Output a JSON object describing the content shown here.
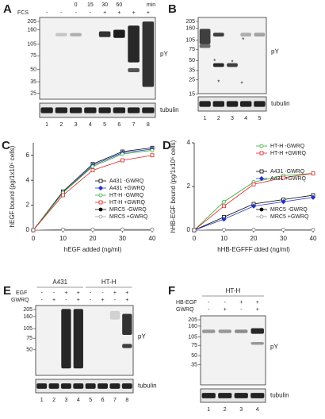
{
  "panels": {
    "A": {
      "label": "A",
      "time": [
        "0",
        "15",
        "30",
        "60"
      ],
      "time_unit": "min",
      "fcs_label": "FCS",
      "fcs": [
        "-",
        "-",
        "-",
        "-",
        "+",
        "+",
        "+",
        "+"
      ],
      "mw": [
        205,
        160,
        105,
        75,
        50,
        35,
        25
      ],
      "blot_label": "pY",
      "loading_label": "tubulin",
      "lanes": [
        1,
        2,
        3,
        4,
        5,
        6,
        7,
        8
      ]
    },
    "B": {
      "label": "B",
      "mw": [
        205,
        160,
        105,
        75,
        50,
        35,
        25,
        15
      ],
      "blot_label": "pY",
      "loading_label": "tubulin",
      "lanes": [
        1,
        2,
        3,
        4,
        5
      ],
      "marks": [
        "*",
        "*",
        "*",
        "*",
        "*"
      ]
    },
    "E": {
      "label": "E",
      "groups": [
        "A431",
        "HT-H"
      ],
      "row1_label": "EGF",
      "row1": [
        "-",
        "-",
        "+",
        "+",
        "-",
        "-",
        "+",
        "+"
      ],
      "row2_label": "GWRQ",
      "row2": [
        "-",
        "+",
        "-",
        "+",
        "-",
        "+",
        "-",
        "+"
      ],
      "mw": [
        205,
        160,
        105,
        75,
        50
      ],
      "blot_label": "pY",
      "loading_label": "tubulin",
      "lanes": [
        1,
        2,
        3,
        4,
        5,
        6,
        7,
        8
      ]
    },
    "F": {
      "label": "F",
      "groups": [
        "HT-H"
      ],
      "row1_label": "HB-EGF",
      "row1": [
        "-",
        "-",
        "+",
        "+"
      ],
      "row2_label": "GWRQ",
      "row2": [
        "-",
        "+",
        "-",
        "+"
      ],
      "mw": [
        205,
        160,
        105,
        75,
        50,
        35
      ],
      "blot_label": "pY",
      "loading_label": "tubulin",
      "lanes": [
        1,
        2,
        3,
        4
      ]
    }
  },
  "chart_data": [
    {
      "type": "line",
      "label": "C",
      "xlabel": "hEGF added (ng/ml)",
      "ylabel": "hEGF bound (pg/1x10⁵ cells)",
      "x": [
        0,
        10,
        20,
        30,
        40
      ],
      "xlim": [
        0,
        40
      ],
      "ylim": [
        0,
        7
      ],
      "xticks": [
        0,
        10,
        20,
        30,
        40
      ],
      "yticks": [
        0,
        2,
        4,
        6
      ],
      "legend": "lower right",
      "series": [
        {
          "name": "A431 -GWRQ",
          "color": "#000000",
          "marker": "square-open",
          "values": [
            0,
            3.1,
            5.3,
            6.3,
            6.6
          ]
        },
        {
          "name": "A431 +GWRQ",
          "color": "#2233cc",
          "marker": "diamond",
          "values": [
            0,
            3.0,
            5.2,
            6.2,
            6.5
          ]
        },
        {
          "name": "HT-H -GWRQ",
          "color": "#33aa33",
          "marker": "circle-open",
          "values": [
            0,
            3.0,
            5.1,
            6.1,
            6.4
          ]
        },
        {
          "name": "HT-H +GWRQ",
          "color": "#dd2222",
          "marker": "square-open",
          "values": [
            0,
            2.8,
            4.8,
            5.6,
            6.0
          ]
        },
        {
          "name": "MRC5 -GWRQ",
          "color": "#000000",
          "marker": "circle",
          "values": [
            0,
            0.05,
            0.05,
            0.05,
            0.05
          ]
        },
        {
          "name": "MRC5 +GWRQ",
          "color": "#999999",
          "marker": "circle-open",
          "values": [
            0,
            0.04,
            0.04,
            0.04,
            0.04
          ]
        }
      ]
    },
    {
      "type": "line",
      "label": "D",
      "xlabel": "hHB-EGFFF dded (ng/ml)",
      "ylabel": "hHB-EGF bound (pg/1x10⁵ cells)",
      "x": [
        0,
        10,
        20,
        30,
        40
      ],
      "xlim": [
        0,
        40
      ],
      "ylim": [
        0,
        4
      ],
      "xticks": [
        0,
        10,
        20,
        30,
        40
      ],
      "yticks": [
        0,
        2,
        4
      ],
      "legend": "upper right",
      "series": [
        {
          "name": "HT-H -GWRQ",
          "color": "#33aa33",
          "marker": "circle-open",
          "values": [
            0,
            1.3,
            2.2,
            2.5,
            2.6
          ]
        },
        {
          "name": "HT-H +GWRQ",
          "color": "#dd2222",
          "marker": "square-open",
          "values": [
            0,
            1.1,
            2.1,
            2.4,
            2.6
          ]
        },
        {
          "name": "A431 -GWRQ",
          "color": "#000000",
          "marker": "square-open",
          "values": [
            0,
            0.6,
            1.2,
            1.4,
            1.6
          ]
        },
        {
          "name": "A431 +GWRQ",
          "color": "#2233cc",
          "marker": "diamond",
          "values": [
            0,
            0.5,
            1.1,
            1.3,
            1.5
          ]
        },
        {
          "name": "MRC5 -GWRQ",
          "color": "#000000",
          "marker": "circle",
          "values": [
            0,
            0.02,
            0.02,
            0.02,
            0.02
          ]
        },
        {
          "name": "MRC5 +GWRQ",
          "color": "#999999",
          "marker": "circle-open",
          "values": [
            0,
            0.02,
            0.02,
            0.02,
            0.02
          ]
        }
      ]
    }
  ]
}
